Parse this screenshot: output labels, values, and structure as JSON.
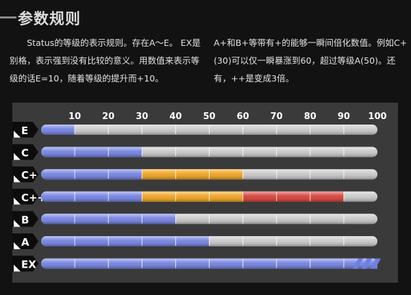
{
  "header": {
    "title": "参数规则"
  },
  "intro": {
    "left": "Status的等级的表示规则。存在A～E。 EX是别格，表示强到没有比较的意义。用数值来表示等级的话E=10，随着等级的提升而+10。",
    "right": "A+和B+等带有+的能够一瞬间倍化数值。例如C+(30)可以仅一瞬暴涨到60，超过等级A(50)。还有，++是变成3倍。"
  },
  "colors": {
    "background": "#121212",
    "panel": "#3a3a3a",
    "base": "#6f7ee0",
    "plus": "#f0a01a",
    "plus_plus": "#d63a33",
    "empty": "#c6c6c6"
  },
  "chart_data": {
    "type": "bar",
    "orientation": "horizontal",
    "stacked": true,
    "xlim": [
      0,
      100
    ],
    "x_ticks": [
      10,
      20,
      30,
      40,
      50,
      60,
      70,
      80,
      90,
      100
    ],
    "categories": [
      "E",
      "C",
      "C+",
      "C++",
      "B",
      "A",
      "EX"
    ],
    "series": [
      {
        "key": "base",
        "values": [
          10,
          30,
          30,
          30,
          40,
          50,
          100
        ]
      },
      {
        "key": "plus",
        "values": [
          0,
          0,
          30,
          30,
          0,
          0,
          0
        ]
      },
      {
        "key": "plus_plus",
        "values": [
          0,
          0,
          0,
          30,
          0,
          0,
          0
        ]
      }
    ],
    "grid": true
  }
}
